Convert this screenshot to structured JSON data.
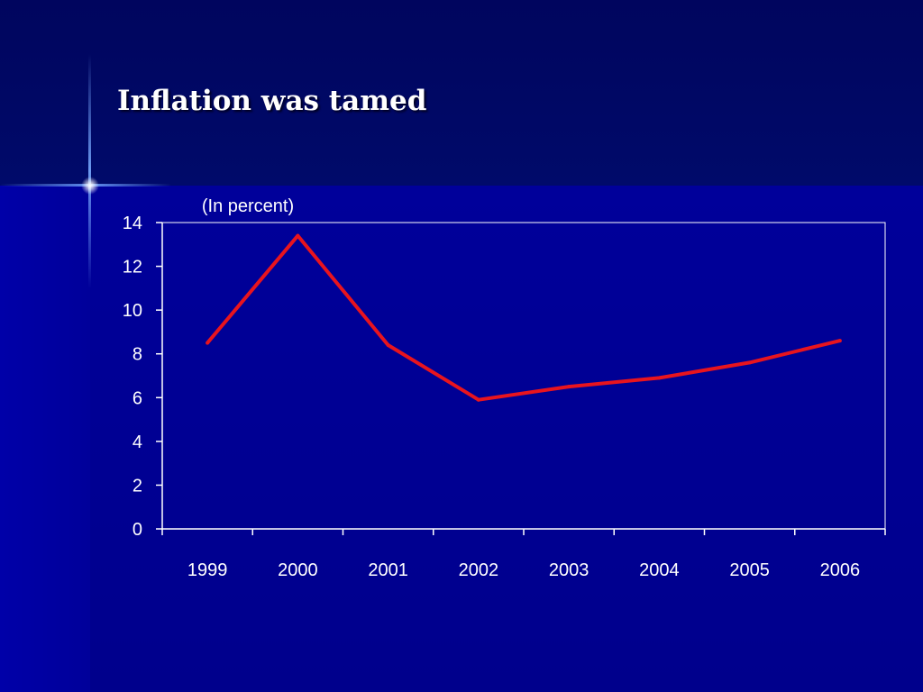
{
  "slide": {
    "title": "Inflation was tamed"
  },
  "colors": {
    "background": "#00009a",
    "line": "#e8141e",
    "axis": "#ffffff"
  },
  "chart_data": {
    "type": "line",
    "title": "",
    "subtitle": "(In percent)",
    "xlabel": "",
    "ylabel": "",
    "categories": [
      "1999",
      "2000",
      "2001",
      "2002",
      "2003",
      "2004",
      "2005",
      "2006"
    ],
    "series": [
      {
        "values": [
          8.5,
          13.4,
          8.4,
          5.9,
          6.5,
          6.9,
          7.6,
          8.6
        ]
      }
    ],
    "ylim": [
      0,
      14
    ],
    "yticks": [
      0,
      2,
      4,
      6,
      8,
      10,
      12,
      14
    ],
    "grid": false,
    "legend": "none"
  }
}
